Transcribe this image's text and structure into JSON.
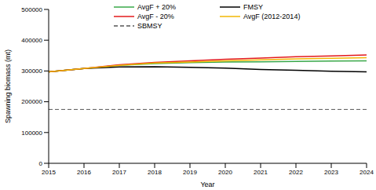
{
  "chart_data": {
    "type": "line",
    "x_label": "Year",
    "y_label": "Spawning biomass (mt)",
    "x": [
      2015,
      2016,
      2017,
      2018,
      2019,
      2020,
      2021,
      2022,
      2023,
      2024
    ],
    "xlim": [
      2015,
      2024
    ],
    "xticks": [
      2015,
      2016,
      2017,
      2018,
      2019,
      2020,
      2021,
      2022,
      2023,
      2024
    ],
    "ylim": [
      0,
      500000
    ],
    "yticks": [
      0,
      100000,
      200000,
      300000,
      400000,
      500000
    ],
    "grid": false,
    "legend": "top",
    "series": [
      {
        "name": "AvgF + 20%",
        "color": "#3aa84a",
        "line_style": "solid",
        "values": [
          297000,
          308000,
          318000,
          324000,
          327000,
          329000,
          330000,
          331000,
          332000,
          333000
        ]
      },
      {
        "name": "FMSY",
        "color": "#000000",
        "line_style": "solid",
        "values": [
          297000,
          308000,
          313000,
          314000,
          312000,
          309000,
          305000,
          302000,
          299000,
          297000
        ]
      },
      {
        "name": "AvgF - 20%",
        "color": "#e31a1c",
        "line_style": "solid",
        "values": [
          297000,
          308000,
          320000,
          328000,
          333000,
          338000,
          342000,
          346000,
          349000,
          352000
        ]
      },
      {
        "name": "AvgF (2012-2014)",
        "color": "#f2b705",
        "line_style": "solid",
        "values": [
          297000,
          308000,
          318000,
          326000,
          329000,
          333000,
          336000,
          339000,
          341000,
          343000
        ]
      },
      {
        "name": "SBMSY",
        "color": "#555555",
        "line_style": "dashed",
        "values": [
          175000,
          175000,
          175000,
          175000,
          175000,
          175000,
          175000,
          175000,
          175000,
          175000
        ]
      }
    ]
  }
}
